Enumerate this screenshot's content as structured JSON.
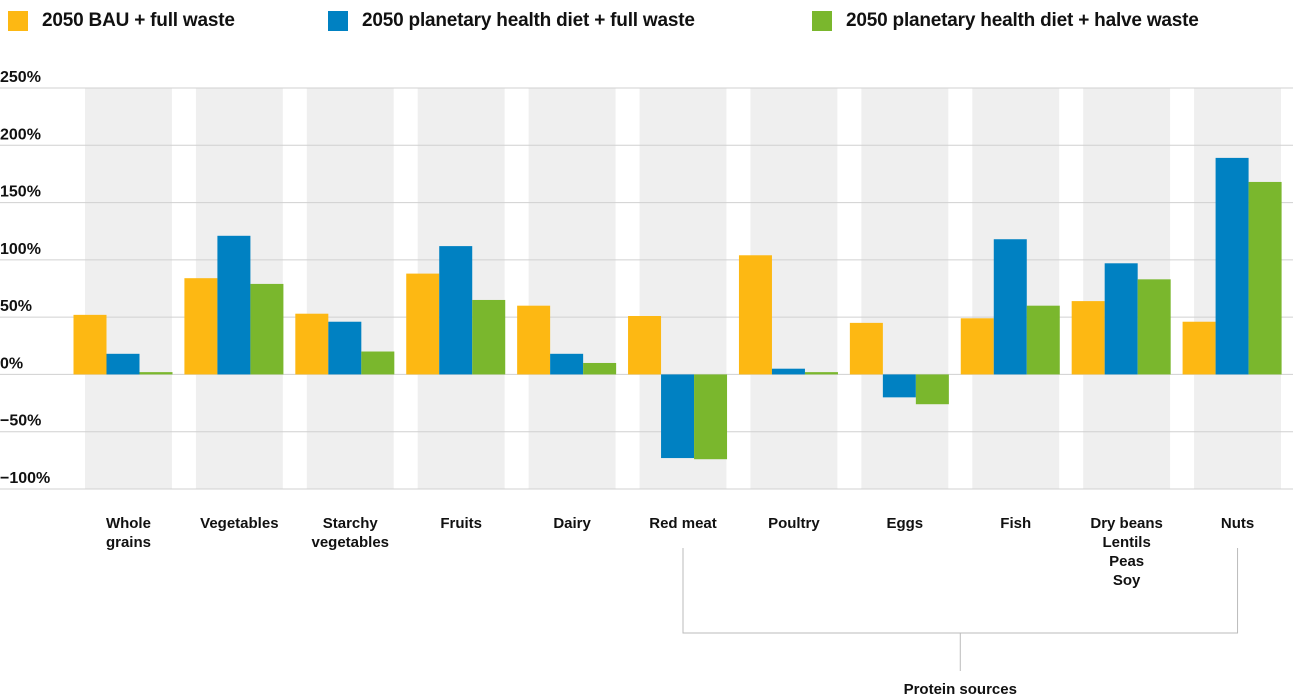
{
  "chart_data": {
    "type": "bar",
    "categories": [
      [
        "Whole",
        "grains"
      ],
      [
        "Vegetables"
      ],
      [
        "Starchy",
        "vegetables"
      ],
      [
        "Fruits"
      ],
      [
        "Dairy"
      ],
      [
        "Red meat"
      ],
      [
        "Poultry"
      ],
      [
        "Eggs"
      ],
      [
        "Fish"
      ],
      [
        "Dry beans",
        "Lentils",
        "Peas",
        "Soy"
      ],
      [
        "Nuts"
      ]
    ],
    "series": [
      {
        "name": "2050 BAU + full waste",
        "color": "#FDB813",
        "values": [
          52,
          84,
          53,
          88,
          60,
          51,
          104,
          45,
          49,
          64,
          46
        ]
      },
      {
        "name": "2050 planetary health diet + full waste",
        "color": "#0081C2",
        "values": [
          18,
          121,
          46,
          112,
          18,
          -73,
          5,
          -20,
          118,
          97,
          189
        ]
      },
      {
        "name": "2050 planetary health diet + halve waste",
        "color": "#7AB72D",
        "values": [
          2,
          79,
          20,
          65,
          10,
          -74,
          2,
          -26,
          60,
          83,
          168
        ]
      }
    ],
    "y_ticks": [
      "250%",
      "200%",
      "150%",
      "100%",
      "50%",
      "0%",
      "−50%",
      "−100%"
    ],
    "ylim": [
      -100,
      250
    ],
    "y_step": 50,
    "group_annotation": {
      "label": "Protein sources",
      "from_category": 5,
      "to_category": 10
    },
    "legend_position": "top",
    "grid": true,
    "band_color": "#EFEFEF",
    "grid_color": "#D0D0D0"
  }
}
